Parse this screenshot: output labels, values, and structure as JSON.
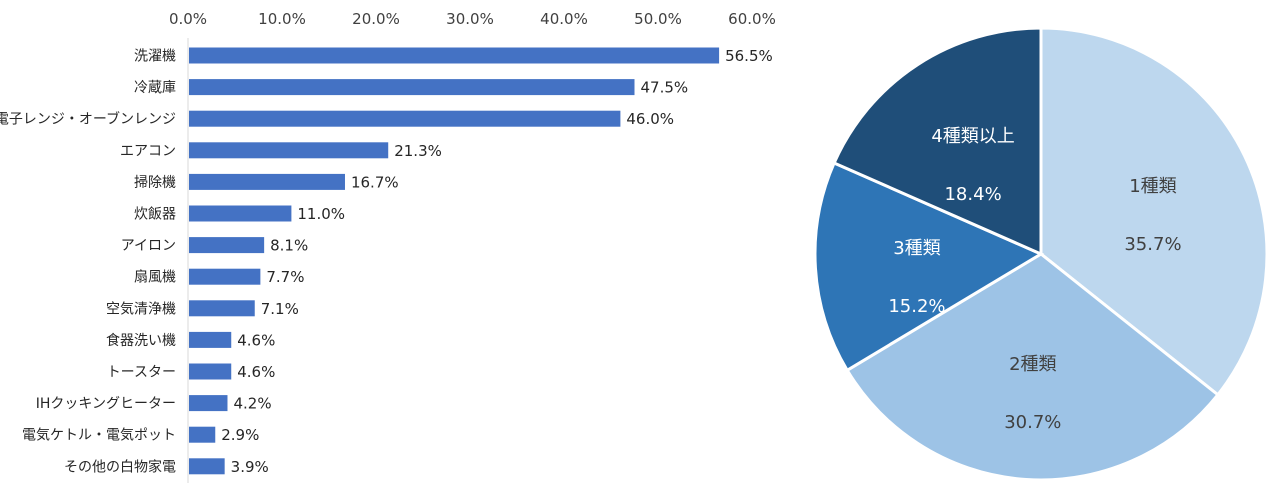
{
  "chart_data": [
    {
      "type": "bar",
      "orientation": "horizontal",
      "xlim": [
        0,
        60
      ],
      "x_ticks": [
        "0.0%",
        "10.0%",
        "20.0%",
        "30.0%",
        "40.0%",
        "50.0%",
        "60.0%"
      ],
      "x_tick_values": [
        0,
        10,
        20,
        30,
        40,
        50,
        60
      ],
      "categories": [
        "洗濯機",
        "冷蔵庫",
        "電子レンジ・オーブンレンジ",
        "エアコン",
        "掃除機",
        "炊飯器",
        "アイロン",
        "扇風機",
        "空気清浄機",
        "食器洗い機",
        "トースター",
        "IHクッキングヒーター",
        "電気ケトル・電気ポット",
        "その他の白物家電"
      ],
      "values": [
        56.5,
        47.5,
        46.0,
        21.3,
        16.7,
        11.0,
        8.1,
        7.7,
        7.1,
        4.6,
        4.6,
        4.2,
        2.9,
        3.9
      ],
      "value_labels": [
        "56.5%",
        "47.5%",
        "46.0%",
        "21.3%",
        "16.7%",
        "11.0%",
        "8.1%",
        "7.7%",
        "7.1%",
        "4.6%",
        "4.6%",
        "4.2%",
        "2.9%",
        "3.9%"
      ],
      "grid": false,
      "color": "#4472C4"
    },
    {
      "type": "pie",
      "slices": [
        {
          "label": "1種類",
          "value": 35.7,
          "value_label": "35.7%",
          "color": "#BDD7EE",
          "text_color": "#404040"
        },
        {
          "label": "2種類",
          "value": 30.7,
          "value_label": "30.7%",
          "color": "#9DC3E6",
          "text_color": "#404040"
        },
        {
          "label": "3種類",
          "value": 15.2,
          "value_label": "15.2%",
          "color": "#2E75B6",
          "text_color": "#ffffff"
        },
        {
          "label": "4種類以上",
          "value": 18.4,
          "value_label": "18.4%",
          "color": "#1F4E79",
          "text_color": "#ffffff"
        }
      ]
    }
  ]
}
